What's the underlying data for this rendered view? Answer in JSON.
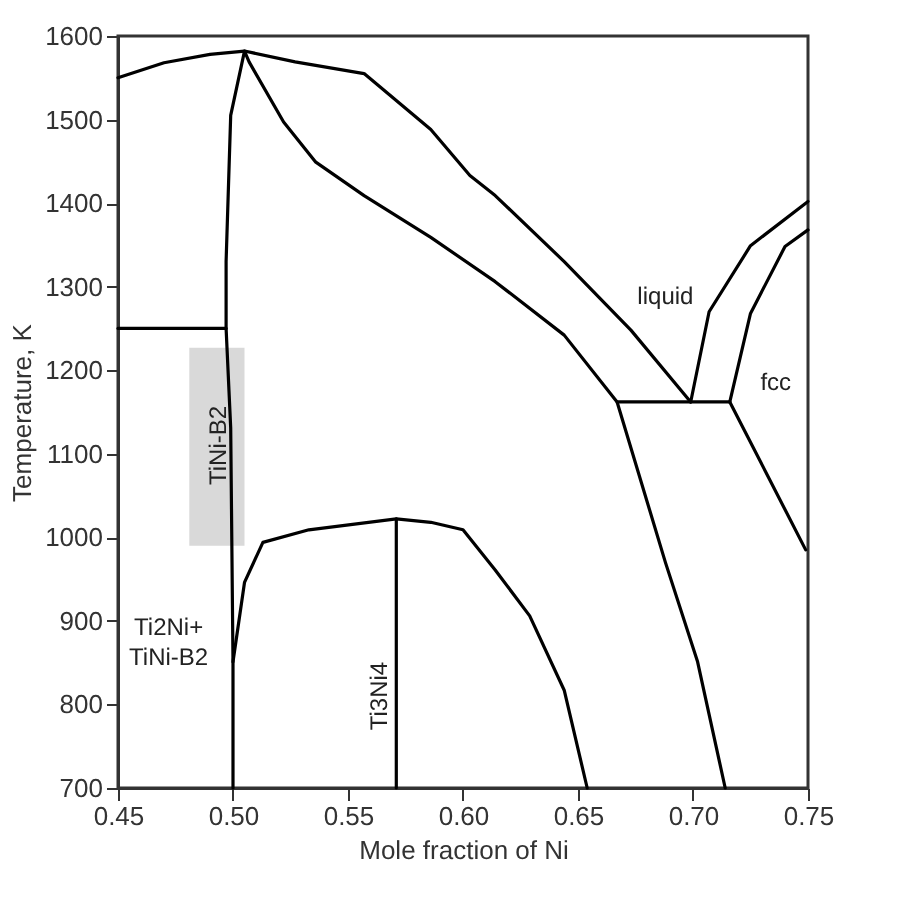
{
  "chart_data": {
    "type": "line",
    "xlabel": "Mole fraction of Ni",
    "ylabel": "Temperature, K",
    "xlim": [
      0.45,
      0.75
    ],
    "ylim": [
      700,
      1600
    ],
    "xticks": [
      {
        "value": 0.45,
        "label": "0.45"
      },
      {
        "value": 0.5,
        "label": "0.50"
      },
      {
        "value": 0.55,
        "label": "0.55"
      },
      {
        "value": 0.6,
        "label": "0.60"
      },
      {
        "value": 0.65,
        "label": "0.65"
      },
      {
        "value": 0.7,
        "label": "0.70"
      },
      {
        "value": 0.75,
        "label": "0.75"
      }
    ],
    "yticks": [
      700,
      800,
      900,
      1000,
      1100,
      1200,
      1300,
      1400,
      1500,
      1600
    ],
    "grid": false,
    "marker": "none",
    "line_style": "solid",
    "series": [
      {
        "type": "bar",
        "color": "#d9d9d9",
        "x": [
          0.493
        ],
        "values": [
          237
        ],
        "base": [
          990
        ]
      },
      {
        "color": "#000000",
        "x": [
          0.45,
          0.47,
          0.49,
          0.505,
          0.527,
          0.557,
          0.586,
          0.603,
          0.614,
          0.644,
          0.673,
          0.699
        ],
        "values": [
          1550,
          1568,
          1578,
          1582,
          1569,
          1555,
          1488,
          1433,
          1409,
          1330,
          1248,
          1162
        ]
      },
      {
        "color": "#000000",
        "x": [
          0.5,
          0.5,
          0.499,
          0.497,
          0.497,
          0.499,
          0.505,
          0.507,
          0.522,
          0.536,
          0.557,
          0.586,
          0.614,
          0.644,
          0.667,
          0.688,
          0.702,
          0.714
        ],
        "values": [
          700,
          851,
          1131,
          1250,
          1330,
          1505,
          1582,
          1569,
          1497,
          1449,
          1409,
          1359,
          1306,
          1242,
          1162,
          970,
          851,
          700
        ]
      },
      {
        "color": "#000000",
        "x": [
          0.667,
          0.716
        ],
        "values": [
          1162,
          1162
        ]
      },
      {
        "color": "#000000",
        "x": [
          0.699,
          0.707,
          0.725,
          0.75
        ],
        "values": [
          1162,
          1270,
          1349,
          1402
        ]
      },
      {
        "color": "#000000",
        "x": [
          0.716,
          0.725,
          0.74,
          0.75
        ],
        "values": [
          1162,
          1268,
          1348,
          1368
        ]
      },
      {
        "color": "#000000",
        "x": [
          0.716,
          0.749
        ],
        "values": [
          1162,
          985
        ]
      },
      {
        "color": "#000000",
        "x": [
          0.45,
          0.497
        ],
        "values": [
          1250,
          1250
        ]
      },
      {
        "color": "#000000",
        "x": [
          0.5,
          0.505,
          0.513,
          0.533,
          0.571,
          0.586,
          0.6,
          0.614,
          0.629,
          0.644,
          0.654
        ],
        "values": [
          851,
          946,
          994,
          1009,
          1022,
          1018,
          1009,
          961,
          906,
          817,
          700
        ]
      },
      {
        "color": "#000000",
        "x": [
          0.571,
          0.571
        ],
        "values": [
          700,
          1022
        ]
      }
    ],
    "annotations": [
      "liquid",
      "fcc",
      "TiNi-B2",
      "Ti2Ni+\nTiNi-B2",
      "Ti3Ni4"
    ]
  }
}
